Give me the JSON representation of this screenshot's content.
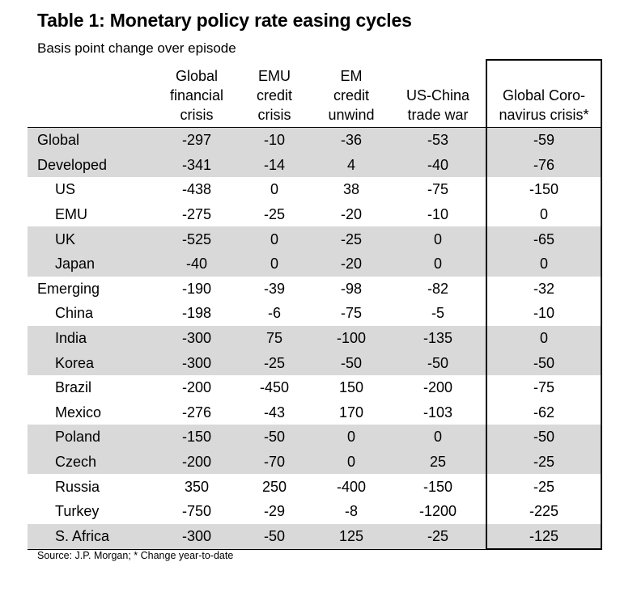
{
  "title": "Table 1: Monetary policy rate easing cycles",
  "subtitle": "Basis point change over episode",
  "columns": [
    {
      "lines": [
        "Global",
        "financial",
        "crisis"
      ]
    },
    {
      "lines": [
        "EMU",
        "credit",
        "crisis"
      ]
    },
    {
      "lines": [
        "EM",
        "credit",
        "unwind"
      ]
    },
    {
      "lines": [
        "US-China",
        "trade war"
      ]
    },
    {
      "lines": [
        "Global Coro-",
        "navirus crisis*"
      ]
    }
  ],
  "rows": [
    {
      "label": "Global",
      "indent": false,
      "shaded": true,
      "values": [
        "-297",
        "-10",
        "-36",
        "-53",
        "-59"
      ]
    },
    {
      "label": "Developed",
      "indent": false,
      "shaded": true,
      "values": [
        "-341",
        "-14",
        "4",
        "-40",
        "-76"
      ]
    },
    {
      "label": "US",
      "indent": true,
      "shaded": false,
      "values": [
        "-438",
        "0",
        "38",
        "-75",
        "-150"
      ]
    },
    {
      "label": "EMU",
      "indent": true,
      "shaded": false,
      "values": [
        "-275",
        "-25",
        "-20",
        "-10",
        "0"
      ]
    },
    {
      "label": "UK",
      "indent": true,
      "shaded": true,
      "values": [
        "-525",
        "0",
        "-25",
        "0",
        "-65"
      ]
    },
    {
      "label": "Japan",
      "indent": true,
      "shaded": true,
      "values": [
        "-40",
        "0",
        "-20",
        "0",
        "0"
      ]
    },
    {
      "label": "Emerging",
      "indent": false,
      "shaded": false,
      "values": [
        "-190",
        "-39",
        "-98",
        "-82",
        "-32"
      ]
    },
    {
      "label": "China",
      "indent": true,
      "shaded": false,
      "values": [
        "-198",
        "-6",
        "-75",
        "-5",
        "-10"
      ]
    },
    {
      "label": "India",
      "indent": true,
      "shaded": true,
      "values": [
        "-300",
        "75",
        "-100",
        "-135",
        "0"
      ]
    },
    {
      "label": "Korea",
      "indent": true,
      "shaded": true,
      "values": [
        "-300",
        "-25",
        "-50",
        "-50",
        "-50"
      ]
    },
    {
      "label": "Brazil",
      "indent": true,
      "shaded": false,
      "values": [
        "-200",
        "-450",
        "150",
        "-200",
        "-75"
      ]
    },
    {
      "label": "Mexico",
      "indent": true,
      "shaded": false,
      "values": [
        "-276",
        "-43",
        "170",
        "-103",
        "-62"
      ]
    },
    {
      "label": "Poland",
      "indent": true,
      "shaded": true,
      "values": [
        "-150",
        "-50",
        "0",
        "0",
        "-50"
      ]
    },
    {
      "label": "Czech",
      "indent": true,
      "shaded": true,
      "values": [
        "-200",
        "-70",
        "0",
        "25",
        "-25"
      ]
    },
    {
      "label": "Russia",
      "indent": true,
      "shaded": false,
      "values": [
        "350",
        "250",
        "-400",
        "-150",
        "-25"
      ]
    },
    {
      "label": "Turkey",
      "indent": true,
      "shaded": false,
      "values": [
        "-750",
        "-29",
        "-8",
        "-1200",
        "-225"
      ]
    },
    {
      "label": "S. Africa",
      "indent": true,
      "shaded": true,
      "values": [
        "-300",
        "-50",
        "125",
        "-25",
        "-125"
      ]
    }
  ],
  "highlight_color": "#000000",
  "shade_color": "#d9d9d9",
  "source": "Source: J.P. Morgan; * Change year-to-date"
}
